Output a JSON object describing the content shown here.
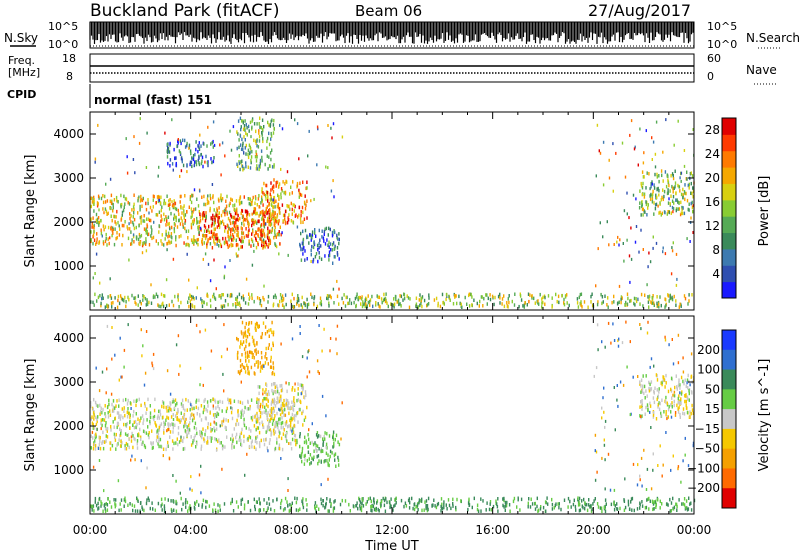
{
  "header": {
    "title": "Buckland Park (fitACF)",
    "beam": "Beam 06",
    "date": "27/Aug/2017"
  },
  "noise_panel": {
    "left_label": "N.Sky",
    "right_label": "N.Search",
    "left_ticks": [
      "10^5",
      "10^0"
    ],
    "right_ticks": [
      "10^5",
      "10^0"
    ]
  },
  "freq_panel": {
    "left_label_1": "Freq.",
    "left_label_2": "[MHz]",
    "right_label": "Nave",
    "left_ticks": [
      "18",
      "8"
    ],
    "right_ticks": [
      "60",
      "0"
    ]
  },
  "cpid_panel": {
    "label": "CPID",
    "text": "normal (fast) 151"
  },
  "x_axis": {
    "label": "Time UT",
    "ticks": [
      "00:00",
      "04:00",
      "08:00",
      "12:00",
      "16:00",
      "20:00",
      "00:00"
    ]
  },
  "chart_data": [
    {
      "type": "heatmap",
      "name": "power",
      "ylabel": "Slant Range [km]",
      "xlabel": "",
      "x_range_hours": [
        0,
        24
      ],
      "ylim": [
        0,
        4500
      ],
      "y_ticks": [
        1000,
        2000,
        3000,
        4000
      ],
      "colorbar": {
        "label": "Power [dB]",
        "ticks": [
          4,
          8,
          12,
          16,
          20,
          24,
          28
        ],
        "range": [
          0,
          30
        ],
        "colors": [
          "#1a1aff",
          "#2f4fb0",
          "#3d7ab0",
          "#3a8a5a",
          "#55aa55",
          "#88cc33",
          "#d8d010",
          "#f5a800",
          "#ff7a00",
          "#ff3a00",
          "#e00000"
        ]
      },
      "regions": [
        {
          "t0": 0.0,
          "t1": 7.6,
          "r0": 1500,
          "r1": 2650,
          "level": 18
        },
        {
          "t0": 4.3,
          "t1": 7.2,
          "r0": 1450,
          "r1": 2300,
          "level": 25
        },
        {
          "t0": 6.8,
          "t1": 8.6,
          "r0": 2000,
          "r1": 3000,
          "level": 22
        },
        {
          "t0": 5.8,
          "t1": 7.3,
          "r0": 3200,
          "r1": 4400,
          "level": 12
        },
        {
          "t0": 3.0,
          "t1": 5.0,
          "r0": 3300,
          "r1": 3900,
          "level": 6
        },
        {
          "t0": 8.3,
          "t1": 9.9,
          "r0": 1100,
          "r1": 1900,
          "level": 7
        },
        {
          "t0": 21.8,
          "t1": 24.0,
          "r0": 2200,
          "r1": 3200,
          "level": 14
        },
        {
          "t0": 0.0,
          "t1": 24.0,
          "r0": 100,
          "r1": 400,
          "level": 15
        }
      ]
    },
    {
      "type": "heatmap",
      "name": "velocity",
      "ylabel": "Slant Range [km]",
      "xlabel": "Time UT",
      "x_range_hours": [
        0,
        24
      ],
      "ylim": [
        0,
        4500
      ],
      "y_ticks": [
        1000,
        2000,
        3000,
        4000
      ],
      "colorbar": {
        "label": "Velocity [m s^-1]",
        "ticks": [
          "200",
          "100",
          "50",
          "15",
          "−15",
          "−50",
          "−100",
          "−200"
        ],
        "colors": [
          "#1a3aff",
          "#2f6fd0",
          "#3a8a5a",
          "#66cc44",
          "#c8c8c8",
          "#f5c800",
          "#f5a000",
          "#ff6a00",
          "#e00000"
        ]
      },
      "regions": [
        {
          "t0": 0.0,
          "t1": 8.2,
          "r0": 1500,
          "r1": 2650,
          "level": 0
        },
        {
          "t0": 6.6,
          "t1": 8.6,
          "r0": 2000,
          "r1": 3000,
          "level": -10
        },
        {
          "t0": 5.8,
          "t1": 7.3,
          "r0": 3200,
          "r1": 4400,
          "level": -60
        },
        {
          "t0": 8.3,
          "t1": 9.9,
          "r0": 1100,
          "r1": 1900,
          "level": 40
        },
        {
          "t0": 21.8,
          "t1": 24.0,
          "r0": 2200,
          "r1": 3200,
          "level": 0
        },
        {
          "t0": 0.0,
          "t1": 24.0,
          "r0": 100,
          "r1": 400,
          "level": 60
        }
      ]
    }
  ]
}
